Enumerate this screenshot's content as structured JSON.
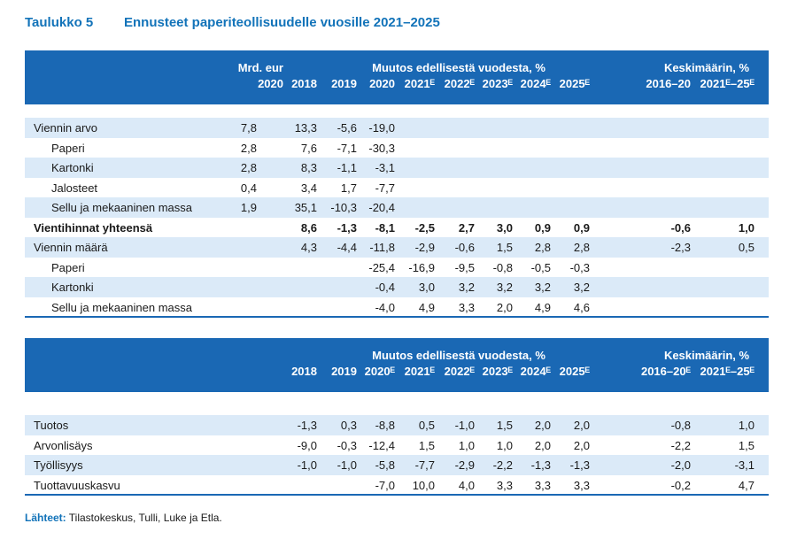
{
  "title": {
    "number": "Taulukko 5",
    "text": "Ennusteet paperiteollisuudelle vuosille 2021–2025"
  },
  "table1": {
    "header": {
      "mrd_label": "Mrd. eur",
      "mrd_year": "2020",
      "change_label": "Muutos edellisestä vuodesta, %",
      "avg_label": "Keskimäärin, %",
      "years": [
        "2018",
        "2019",
        "2020",
        "2021ᴱ",
        "2022ᴱ",
        "2023ᴱ",
        "2024ᴱ",
        "2025ᴱ"
      ],
      "avg_years": [
        "2016–20",
        "2021ᴱ–25ᴱ"
      ]
    },
    "rows": [
      {
        "label": "Viennin arvo",
        "indent": false,
        "bold": false,
        "mrd": "7,8",
        "vals": [
          "13,3",
          "-5,6",
          "-19,0",
          "",
          "",
          "",
          "",
          ""
        ],
        "avg": [
          "",
          ""
        ]
      },
      {
        "label": "Paperi",
        "indent": true,
        "bold": false,
        "mrd": "2,8",
        "vals": [
          "7,6",
          "-7,1",
          "-30,3",
          "",
          "",
          "",
          "",
          ""
        ],
        "avg": [
          "",
          ""
        ]
      },
      {
        "label": "Kartonki",
        "indent": true,
        "bold": false,
        "mrd": "2,8",
        "vals": [
          "8,3",
          "-1,1",
          "-3,1",
          "",
          "",
          "",
          "",
          ""
        ],
        "avg": [
          "",
          ""
        ]
      },
      {
        "label": "Jalosteet",
        "indent": true,
        "bold": false,
        "mrd": "0,4",
        "vals": [
          "3,4",
          "1,7",
          "-7,7",
          "",
          "",
          "",
          "",
          ""
        ],
        "avg": [
          "",
          ""
        ]
      },
      {
        "label": "Sellu ja mekaaninen massa",
        "indent": true,
        "bold": false,
        "mrd": "1,9",
        "vals": [
          "35,1",
          "-10,3",
          "-20,4",
          "",
          "",
          "",
          "",
          ""
        ],
        "avg": [
          "",
          ""
        ]
      },
      {
        "label": "Vientihinnat yhteensä",
        "indent": false,
        "bold": true,
        "mrd": "",
        "vals": [
          "8,6",
          "-1,3",
          "-8,1",
          "-2,5",
          "2,7",
          "3,0",
          "0,9",
          "0,9"
        ],
        "avg": [
          "-0,6",
          "1,0"
        ]
      },
      {
        "label": "Viennin määrä",
        "indent": false,
        "bold": false,
        "mrd": "",
        "vals": [
          "4,3",
          "-4,4",
          "-11,8",
          "-2,9",
          "-0,6",
          "1,5",
          "2,8",
          "2,8"
        ],
        "avg": [
          "-2,3",
          "0,5"
        ]
      },
      {
        "label": "Paperi",
        "indent": true,
        "bold": false,
        "mrd": "",
        "vals": [
          "",
          "",
          "-25,4",
          "-16,9",
          "-9,5",
          "-0,8",
          "-0,5",
          "-0,3"
        ],
        "avg": [
          "",
          ""
        ]
      },
      {
        "label": "Kartonki",
        "indent": true,
        "bold": false,
        "mrd": "",
        "vals": [
          "",
          "",
          "-0,4",
          "3,0",
          "3,2",
          "3,2",
          "3,2",
          "3,2"
        ],
        "avg": [
          "",
          ""
        ]
      },
      {
        "label": "Sellu ja mekaaninen massa",
        "indent": true,
        "bold": false,
        "mrd": "",
        "vals": [
          "",
          "",
          "-4,0",
          "4,9",
          "3,3",
          "2,0",
          "4,9",
          "4,6"
        ],
        "avg": [
          "",
          ""
        ]
      }
    ]
  },
  "table2": {
    "header": {
      "change_label": "Muutos edellisestä vuodesta, %",
      "avg_label": "Keskimäärin, %",
      "years": [
        "2018",
        "2019",
        "2020ᴱ",
        "2021ᴱ",
        "2022ᴱ",
        "2023ᴱ",
        "2024ᴱ",
        "2025ᴱ"
      ],
      "avg_years": [
        "2016–20ᴱ",
        "2021ᴱ–25ᴱ"
      ]
    },
    "rows": [
      {
        "label": "Tuotos",
        "vals": [
          "-1,3",
          "0,3",
          "-8,8",
          "0,5",
          "-1,0",
          "1,5",
          "2,0",
          "2,0"
        ],
        "avg": [
          "-0,8",
          "1,0"
        ]
      },
      {
        "label": "Arvonlisäys",
        "vals": [
          "-9,0",
          "-0,3",
          "-12,4",
          "1,5",
          "1,0",
          "1,0",
          "2,0",
          "2,0"
        ],
        "avg": [
          "-2,2",
          "1,5"
        ]
      },
      {
        "label": "Työllisyys",
        "vals": [
          "-1,0",
          "-1,0",
          "-5,8",
          "-7,7",
          "-2,9",
          "-2,2",
          "-1,3",
          "-1,3"
        ],
        "avg": [
          "-2,0",
          "-3,1"
        ]
      },
      {
        "label": "Tuottavuuskasvu",
        "vals": [
          "",
          "",
          "-7,0",
          "10,0",
          "4,0",
          "3,3",
          "3,3",
          "3,3"
        ],
        "avg": [
          "-0,2",
          "4,7"
        ]
      }
    ]
  },
  "source": {
    "label": "Lähteet:",
    "text": " Tilastokeskus, Tulli, Luke ja Etla."
  },
  "colors": {
    "header_bg": "#1a68b4",
    "row_alt": "#dbeaf8",
    "title": "#1273b9"
  }
}
